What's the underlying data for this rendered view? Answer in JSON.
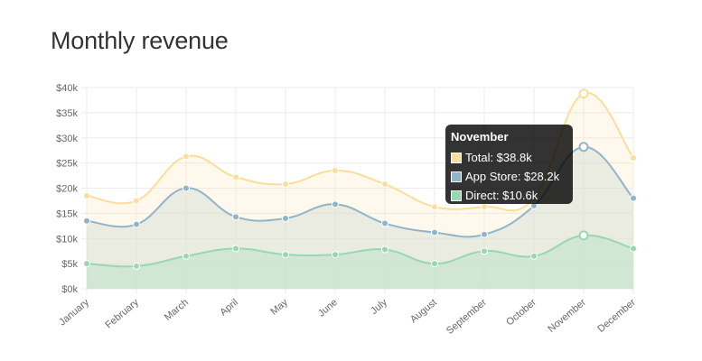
{
  "title": "Monthly revenue",
  "chart_data": {
    "type": "area",
    "categories": [
      "January",
      "February",
      "March",
      "April",
      "May",
      "June",
      "July",
      "August",
      "September",
      "October",
      "November",
      "December"
    ],
    "y_ticks": [
      "$0k",
      "$5k",
      "$10k",
      "$15k",
      "$20k",
      "$25k",
      "$30k",
      "$35k",
      "$40k"
    ],
    "ylim": [
      0,
      40
    ],
    "grid": true,
    "interpolation": "smooth",
    "series": [
      {
        "name": "Total",
        "color": "#fddd9b",
        "fill": "rgba(253,230,180,0.25)",
        "values": [
          18.5,
          17.5,
          26.3,
          22.2,
          20.8,
          23.5,
          20.8,
          16.3,
          16.3,
          18.0,
          38.8,
          26.0
        ]
      },
      {
        "name": "App Store",
        "color": "#90b4c9",
        "fill": "rgba(210,220,215,0.45)",
        "values": [
          13.5,
          12.8,
          20.0,
          14.3,
          14.0,
          16.8,
          13.0,
          11.2,
          10.8,
          16.5,
          28.2,
          18.0
        ]
      },
      {
        "name": "Direct",
        "color": "#97d8b0",
        "fill": "rgba(190,225,200,0.55)",
        "values": [
          5.0,
          4.5,
          6.5,
          8.0,
          6.8,
          6.8,
          7.8,
          5.0,
          7.5,
          6.5,
          10.6,
          8.0
        ]
      }
    ],
    "highlight_index": 10
  },
  "tooltip": {
    "title": "November",
    "rows": [
      "Total: $38.8k",
      "App Store: $28.2k",
      "Direct: $10.6k"
    ]
  }
}
